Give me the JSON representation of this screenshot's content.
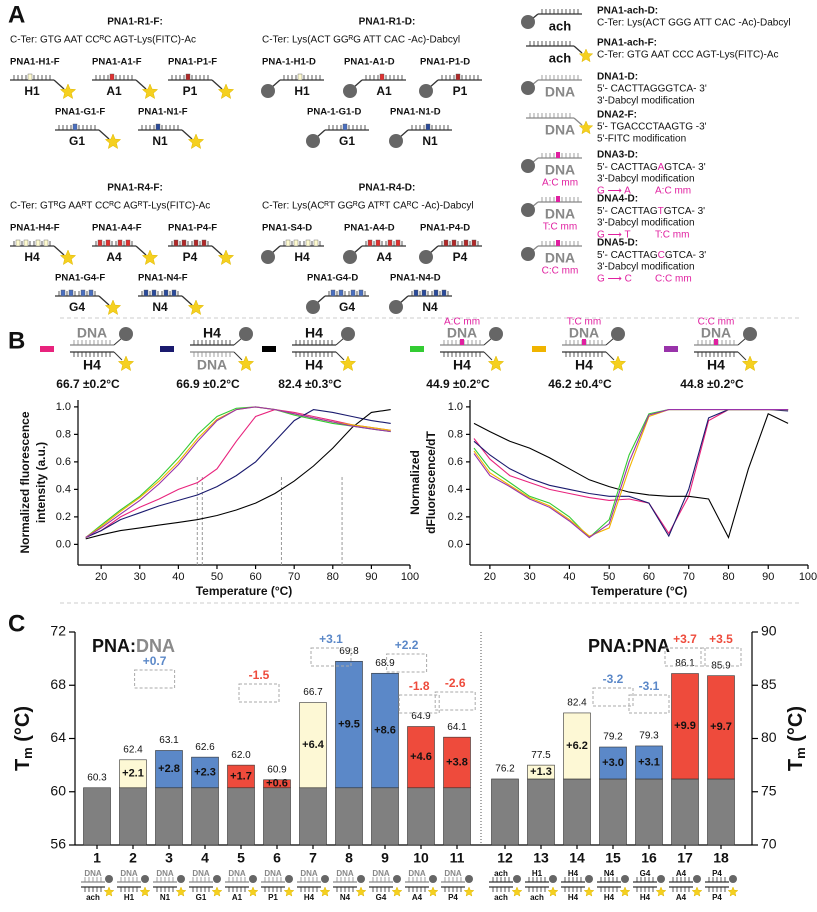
{
  "panel_a": {
    "label": "A",
    "groups": [
      {
        "title": "PNA1-R1-F:",
        "seq": "C-Ter: GTG AAT CCᴿC AGT-Lys(FITC)-Ac",
        "items": [
          {
            "name": "PNA1-H1-F",
            "tag": "H1"
          },
          {
            "name": "PNA1-A1-F",
            "tag": "A1"
          },
          {
            "name": "PNA1-P1-F",
            "tag": "P1"
          },
          {
            "name": "PNA1-G1-F",
            "tag": "G1"
          },
          {
            "name": "PNA1-N1-F",
            "tag": "N1"
          }
        ]
      },
      {
        "title": "PNA1-R1-D:",
        "seq": "C-Ter: Lys(ACT GGᴿG ATT CAC -Ac)-Dabcyl",
        "items": [
          {
            "name": "PNA-1-H1-D",
            "tag": "H1"
          },
          {
            "name": "PNA1-A1-D",
            "tag": "A1"
          },
          {
            "name": "PNA1-P1-D",
            "tag": "P1"
          },
          {
            "name": "PNA-1-G1-D",
            "tag": "G1"
          },
          {
            "name": "PNA1-N1-D",
            "tag": "N1"
          }
        ]
      },
      {
        "title": "PNA1-R4-F:",
        "seq": "C-Ter: GTᴿG AAᴿT CCᴿC AGᴿT-Lys(FITC)-Ac",
        "items": [
          {
            "name": "PNA1-H4-F",
            "tag": "H4"
          },
          {
            "name": "PNA1-A4-F",
            "tag": "A4"
          },
          {
            "name": "PNA1-P4-F",
            "tag": "P4"
          },
          {
            "name": "PNA1-G4-F",
            "tag": "G4"
          },
          {
            "name": "PNA1-N4-F",
            "tag": "N4"
          }
        ]
      },
      {
        "title": "PNA1-R4-D:",
        "seq": "C-Ter: Lys(ACᴿT GGᴿG ATᴿT CAᴿC -Ac)-Dabcyl",
        "items": [
          {
            "name": "PNA1-S4-D",
            "tag": "H4"
          },
          {
            "name": "PNA1-A4-D",
            "tag": "A4"
          },
          {
            "name": "PNA1-P4-D",
            "tag": "P4"
          },
          {
            "name": "PNA1-G4-D",
            "tag": "G4"
          },
          {
            "name": "PNA1-N4-D",
            "tag": "N4"
          }
        ]
      }
    ],
    "legend": [
      {
        "name": "PNA1-ach-D:",
        "icon": [
          "ach"
        ],
        "lines": [
          "C-Ter: Lys(ACT GGG ATT CAC -Ac)-Dabcyl"
        ]
      },
      {
        "name": "PNA1-ach-F:",
        "icon": [
          "ach"
        ],
        "lines": [
          "C-Ter: GTG AAT CCC AGT-Lys(FITC)-Ac"
        ]
      },
      {
        "name": "DNA1-D:",
        "icon": [
          "DNA"
        ],
        "lines": [
          "5'- CACTTAGGGTCA- 3'",
          "3'-Dabcyl modification"
        ]
      },
      {
        "name": "DNA2-F:",
        "icon": [
          "DNA"
        ],
        "lines": [
          "5'- TGACCCTAAGTG -3'",
          "5'-FITC modification"
        ]
      },
      {
        "name": "DNA3-D:",
        "icon": [
          "DNA",
          "A:C mm"
        ],
        "seq": [
          "5'- CACTTAG",
          "A",
          "GTCA- 3'"
        ],
        "lines": [
          "3'-Dabcyl modification"
        ],
        "mutation": [
          "G ⟶ A",
          "A:C mm"
        ]
      },
      {
        "name": "DNA4-D:",
        "icon": [
          "DNA",
          "T:C mm"
        ],
        "seq": [
          "5'- CACTTAG",
          "T",
          "GTCA- 3'"
        ],
        "lines": [
          "3'-Dabcyl modification"
        ],
        "mutation": [
          "G ⟶ T",
          "T:C mm"
        ]
      },
      {
        "name": "DNA5-D:",
        "icon": [
          "DNA",
          "C:C mm"
        ],
        "seq": [
          "5'- CACTTAG",
          "C",
          "GTCA- 3'"
        ],
        "lines": [
          "3'-Dabcyl modification"
        ],
        "mutation": [
          "G ⟶ C",
          "C:C mm"
        ]
      }
    ]
  },
  "panel_b": {
    "label": "B"
  },
  "panel_c": {
    "label": "C"
  },
  "chart_data": [
    {
      "type": "line",
      "xlabel": "Temperature (°C)",
      "ylabel": [
        "Normalized fluorescence",
        "intensity (a.u.)"
      ],
      "x": [
        16,
        20,
        25,
        30,
        35,
        40,
        45,
        50,
        55,
        60,
        65,
        70,
        75,
        80,
        85,
        90,
        95
      ],
      "xlim": [
        14,
        100
      ],
      "xticks": [
        20,
        30,
        40,
        50,
        60,
        70,
        80,
        90,
        100
      ],
      "ylim": [
        -0.15,
        1.05
      ],
      "yticks": [
        {
          "value": 0,
          "label": "0.0"
        },
        {
          "value": 0.2,
          "label": "0.2"
        },
        {
          "value": 0.4,
          "label": "0.4"
        },
        {
          "value": 0.6,
          "label": "0.6"
        },
        {
          "value": 0.8,
          "label": "0.8"
        },
        {
          "value": 1,
          "label": "1.0"
        }
      ],
      "vlines": [
        44.9,
        46.2,
        66.7,
        82.4
      ],
      "series": [
        {
          "color": "#e8237d",
          "icon_labels": [
            "DNA",
            "H4"
          ],
          "tm": "66.7 ±0.2°C",
          "values": [
            0.05,
            0.1,
            0.2,
            0.27,
            0.33,
            0.4,
            0.45,
            0.55,
            0.75,
            0.93,
            0.98,
            0.96,
            0.93,
            0.9,
            0.87,
            0.85,
            0.83
          ]
        },
        {
          "color": "#1a1a6e",
          "icon_labels": [
            "H4",
            "DNA"
          ],
          "tm": "66.9 ±0.2°C",
          "values": [
            0.05,
            0.1,
            0.18,
            0.23,
            0.28,
            0.32,
            0.36,
            0.42,
            0.5,
            0.6,
            0.75,
            0.9,
            0.98,
            0.96,
            0.93,
            0.9,
            0.88
          ]
        },
        {
          "color": "#000000",
          "icon_labels": [
            "H4",
            "H4"
          ],
          "tm": "82.4 ±0.3°C",
          "values": [
            0.04,
            0.07,
            0.1,
            0.12,
            0.14,
            0.16,
            0.18,
            0.21,
            0.25,
            0.3,
            0.37,
            0.46,
            0.57,
            0.7,
            0.85,
            0.96,
            0.98
          ]
        },
        {
          "color": "#33cc33",
          "icon_labels": [
            "A:C mm",
            "DNA",
            "H4"
          ],
          "tm": "44.9 ±0.2°C",
          "values": [
            0.05,
            0.14,
            0.25,
            0.35,
            0.48,
            0.63,
            0.8,
            0.93,
            0.99,
            1.0,
            0.98,
            0.94,
            0.91,
            0.88,
            0.86,
            0.84,
            0.82
          ]
        },
        {
          "color": "#f0b400",
          "icon_labels": [
            "T:C mm",
            "DNA",
            "H4"
          ],
          "tm": "46.2 ±0.4°C",
          "values": [
            0.05,
            0.13,
            0.24,
            0.34,
            0.46,
            0.6,
            0.77,
            0.91,
            0.98,
            1.0,
            0.98,
            0.95,
            0.92,
            0.89,
            0.87,
            0.85,
            0.83
          ]
        },
        {
          "color": "#9933aa",
          "icon_labels": [
            "C:C mm",
            "DNA",
            "H4"
          ],
          "tm": "44.8 ±0.2°C",
          "values": [
            0.05,
            0.12,
            0.22,
            0.32,
            0.44,
            0.58,
            0.75,
            0.9,
            0.98,
            1.0,
            0.98,
            0.95,
            0.92,
            0.89,
            0.86,
            0.84,
            0.82
          ]
        }
      ]
    },
    {
      "type": "line",
      "xlabel": "Temperature (°C)",
      "ylabel": [
        "Normalized",
        "dFluorescence/dT"
      ],
      "x": [
        16,
        20,
        25,
        30,
        35,
        40,
        45,
        50,
        55,
        60,
        65,
        70,
        75,
        80,
        85,
        90,
        95
      ],
      "xlim": [
        15,
        100
      ],
      "xticks": [
        20,
        30,
        40,
        50,
        60,
        70,
        80,
        90,
        100
      ],
      "ylim": [
        -0.15,
        1.05
      ],
      "yticks": [
        {
          "value": 0,
          "label": "0.0"
        },
        {
          "value": 0.2,
          "label": "0.2"
        },
        {
          "value": 0.4,
          "label": "0.4"
        },
        {
          "value": 0.6,
          "label": "0.6"
        },
        {
          "value": 0.8,
          "label": "0.8"
        },
        {
          "value": 1,
          "label": "1.0"
        }
      ],
      "series": [
        {
          "color": "#e8237d",
          "values": [
            0.77,
            0.62,
            0.5,
            0.45,
            0.4,
            0.37,
            0.34,
            0.32,
            0.33,
            0.3,
            0.08,
            0.35,
            0.9,
            0.98,
            0.98,
            0.98,
            0.98
          ]
        },
        {
          "color": "#1a1a6e",
          "values": [
            0.75,
            0.65,
            0.55,
            0.48,
            0.43,
            0.4,
            0.37,
            0.35,
            0.35,
            0.3,
            0.06,
            0.4,
            0.92,
            0.98,
            0.98,
            0.98,
            0.97
          ]
        },
        {
          "color": "#000000",
          "values": [
            0.88,
            0.82,
            0.75,
            0.7,
            0.63,
            0.55,
            0.47,
            0.42,
            0.38,
            0.36,
            0.35,
            0.35,
            0.33,
            0.05,
            0.55,
            0.95,
            0.88
          ]
        },
        {
          "color": "#33cc33",
          "values": [
            0.7,
            0.55,
            0.45,
            0.35,
            0.3,
            0.2,
            0.05,
            0.18,
            0.65,
            0.95,
            0.98,
            0.98,
            0.98,
            0.98,
            0.98,
            0.98,
            0.98
          ]
        },
        {
          "color": "#f0b400",
          "values": [
            0.68,
            0.52,
            0.43,
            0.34,
            0.28,
            0.18,
            0.06,
            0.12,
            0.55,
            0.93,
            0.98,
            0.98,
            0.98,
            0.98,
            0.98,
            0.98,
            0.98
          ]
        },
        {
          "color": "#9933aa",
          "values": [
            0.66,
            0.5,
            0.42,
            0.33,
            0.27,
            0.17,
            0.05,
            0.15,
            0.6,
            0.94,
            0.98,
            0.98,
            0.98,
            0.98,
            0.98,
            0.98,
            0.98
          ]
        }
      ]
    },
    {
      "type": "bar",
      "title": [
        "PNA:",
        "DNA"
      ],
      "ylabel": [
        "T",
        "m",
        " (°C)"
      ],
      "categories": [
        "1",
        "2",
        "3",
        "4",
        "5",
        "6",
        "7",
        "8",
        "9",
        "10",
        "11"
      ],
      "ylim": [
        56,
        72
      ],
      "yticks": [
        56,
        60,
        64,
        68,
        72
      ],
      "series": [
        {
          "color": "#808080",
          "values": [
            60.3,
            60.3,
            60.3,
            60.3,
            60.3,
            60.3,
            60.3,
            60.3,
            60.3,
            60.3,
            60.3
          ]
        },
        {
          "colors": [
            null,
            "#fdf8d5",
            "#5b88c8",
            "#5b88c8",
            "#ee4b3c",
            "#ee4b3c",
            "#fdf8d5",
            "#5b88c8",
            "#5b88c8",
            "#ee4b3c",
            "#ee4b3c"
          ],
          "values": [
            null,
            2.1,
            2.8,
            2.3,
            1.7,
            0.6,
            6.4,
            9.5,
            8.6,
            4.6,
            3.8
          ],
          "value_labels": [
            null,
            "+2.1",
            "+2.8",
            "+2.3",
            "+1.7",
            "+0.6",
            "+6.4",
            "+9.5",
            "+8.6",
            "+4.6",
            "+3.8"
          ]
        }
      ],
      "totals": [
        "60.3",
        "62.4",
        "63.1",
        "62.6",
        "62.0",
        "60.9",
        "66.7",
        "69.8",
        "68.9",
        "64.9",
        "64.1"
      ],
      "deltas": [
        {
          "text": "+0.7",
          "color": "#5b88c8"
        },
        {
          "text": "-1.5",
          "color": "#ee4b3c"
        },
        {
          "text": "+3.1",
          "color": "#5b88c8"
        },
        {
          "text": "+2.2",
          "color": "#5b88c8"
        },
        {
          "text": "-1.8",
          "color": "#ee4b3c"
        },
        {
          "text": "-2.6",
          "color": "#ee4b3c"
        }
      ],
      "icons": [
        [
          "DNA",
          "ach"
        ],
        [
          "DNA",
          "H1"
        ],
        [
          "DNA",
          "N1"
        ],
        [
          "DNA",
          "G1"
        ],
        [
          "DNA",
          "A1"
        ],
        [
          "DNA",
          "P1"
        ],
        [
          "DNA",
          "H4"
        ],
        [
          "DNA",
          "N4"
        ],
        [
          "DNA",
          "G4"
        ],
        [
          "DNA",
          "A4"
        ],
        [
          "DNA",
          "P4"
        ]
      ]
    },
    {
      "type": "bar",
      "title": [
        "PNA:PNA"
      ],
      "ylabel": [
        "T",
        "m",
        " (°C)"
      ],
      "categories": [
        "12",
        "13",
        "14",
        "15",
        "16",
        "17",
        "18"
      ],
      "y2lim": [
        70,
        90
      ],
      "y2ticks": [
        70,
        75,
        80,
        85,
        90
      ],
      "series": [
        {
          "axis": "y2",
          "color": "#808080",
          "values": [
            76.2,
            76.2,
            76.2,
            76.2,
            76.2,
            76.2,
            76.2
          ]
        },
        {
          "axis": "y2",
          "colors": [
            null,
            "#fdf8d5",
            "#fdf8d5",
            "#5b88c8",
            "#5b88c8",
            "#ee4b3c",
            "#ee4b3c"
          ],
          "values": [
            null,
            1.3,
            6.2,
            3.0,
            3.1,
            9.9,
            9.7
          ],
          "value_labels": [
            null,
            "+1.3",
            "+6.2",
            "+3.0",
            "+3.1",
            "+9.9",
            "+9.7"
          ]
        }
      ],
      "totals": [
        "76.2",
        "77.5",
        "82.4",
        "79.2",
        "79.3",
        "86.1",
        "85.9"
      ],
      "deltas": [
        {
          "text": "-3.2",
          "color": "#5b88c8"
        },
        {
          "text": "-3.1",
          "color": "#5b88c8"
        },
        {
          "text": "+3.7",
          "color": "#ee4b3c"
        },
        {
          "text": "+3.5",
          "color": "#ee4b3c"
        }
      ],
      "icons": [
        [
          "ach",
          "ach"
        ],
        [
          "H1",
          "ach"
        ],
        [
          "H4",
          "H4"
        ],
        [
          "N4",
          "H4"
        ],
        [
          "G4",
          "H4"
        ],
        [
          "A4",
          "A4"
        ],
        [
          "P4",
          "P4"
        ]
      ]
    }
  ]
}
